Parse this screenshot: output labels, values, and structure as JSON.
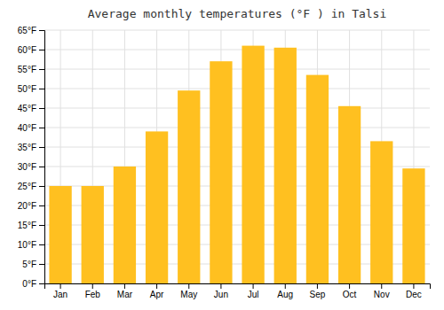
{
  "chart_data": {
    "type": "bar",
    "title": "Average monthly temperatures (°F ) in Talsi",
    "categories": [
      "Jan",
      "Feb",
      "Mar",
      "Apr",
      "May",
      "Jun",
      "Jul",
      "Aug",
      "Sep",
      "Oct",
      "Nov",
      "Dec"
    ],
    "values": [
      25,
      25,
      30,
      39,
      49.5,
      57,
      61,
      60.5,
      53.5,
      45.5,
      36.5,
      29.5
    ],
    "color": "#FFC020",
    "ylim": [
      0,
      65
    ],
    "yticks": [
      {
        "value": 0,
        "label": "0°F"
      },
      {
        "value": 5,
        "label": "5°F"
      },
      {
        "value": 10,
        "label": "10°F"
      },
      {
        "value": 15,
        "label": "15°F"
      },
      {
        "value": 20,
        "label": "20°F"
      },
      {
        "value": 25,
        "label": "25°F"
      },
      {
        "value": 30,
        "label": "30°F"
      },
      {
        "value": 35,
        "label": "35°F"
      },
      {
        "value": 40,
        "label": "40°F"
      },
      {
        "value": 45,
        "label": "45°F"
      },
      {
        "value": 50,
        "label": "50°F"
      },
      {
        "value": 55,
        "label": "55°F"
      },
      {
        "value": 60,
        "label": "60°F"
      },
      {
        "value": 65,
        "label": "65°F"
      }
    ],
    "grid": true
  }
}
